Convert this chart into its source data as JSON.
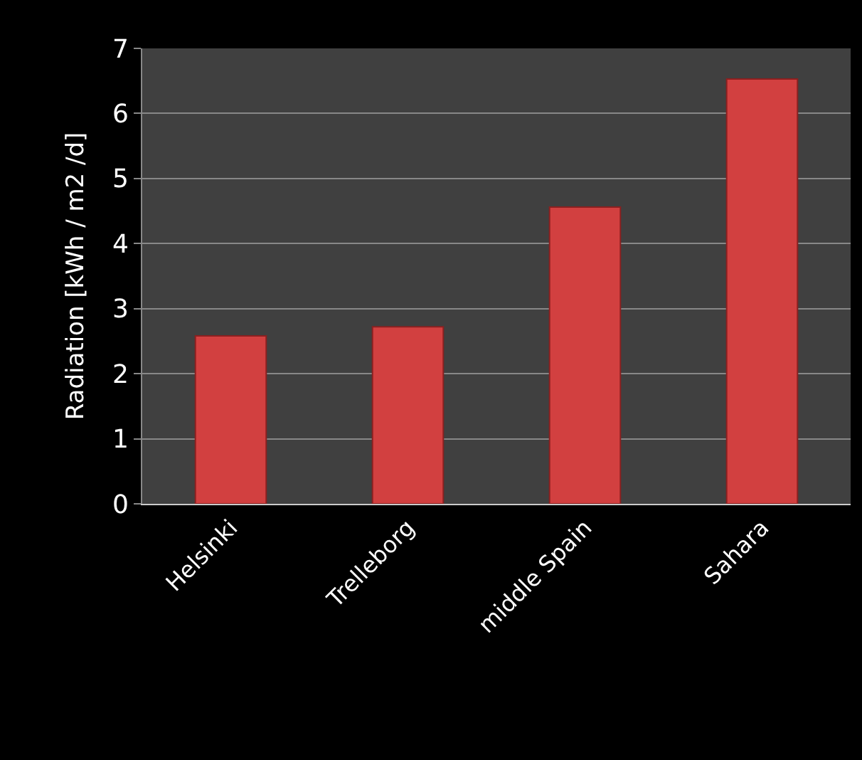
{
  "chart_data": {
    "type": "bar",
    "ylabel": "Radiation [kWh / m2 /d]",
    "categories": [
      "Helsinki",
      "Trelleborg",
      "middle Spain",
      "Sahara"
    ],
    "values": [
      2.58,
      2.72,
      4.56,
      6.53
    ],
    "color": "#d24040",
    "ylim": [
      0,
      7
    ],
    "yticks": [
      0,
      1,
      2,
      3,
      4,
      5,
      6,
      7
    ],
    "grid": "y"
  }
}
